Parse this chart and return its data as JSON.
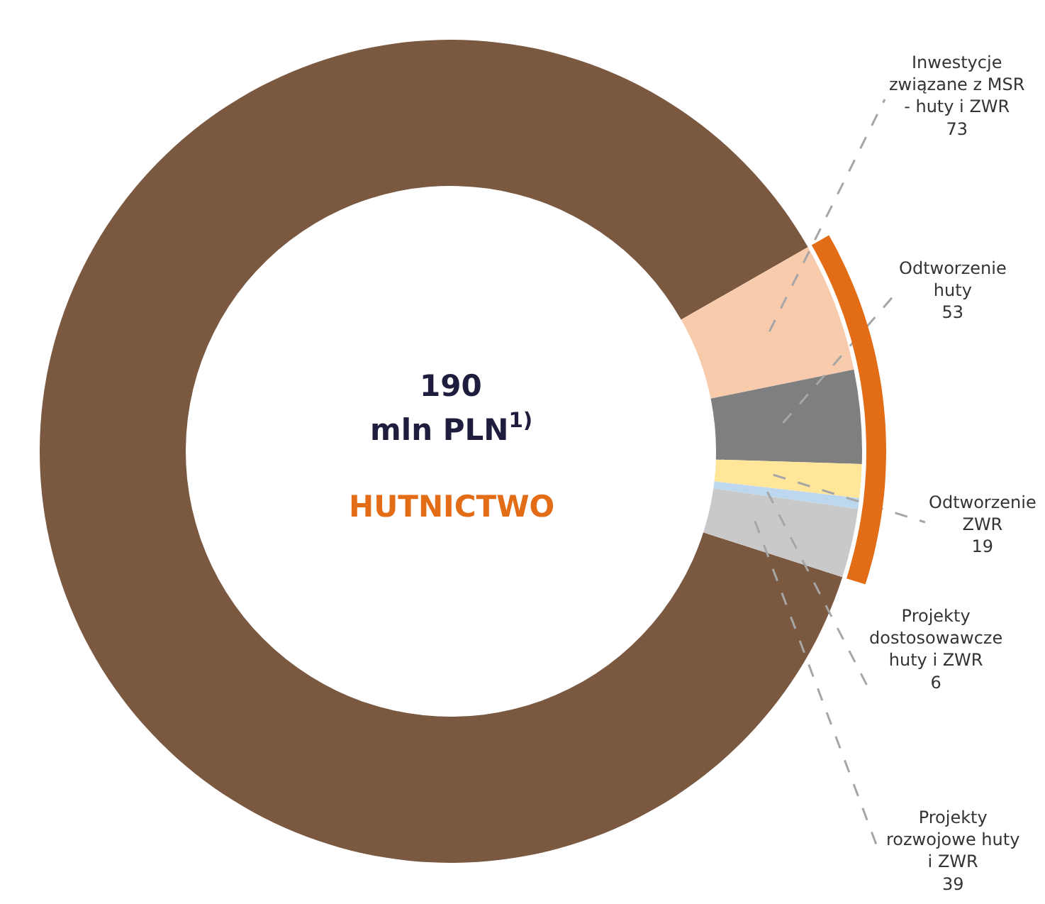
{
  "chart_data": {
    "type": "donut",
    "categories": [
      null,
      "Inwestycje związane z MSR - huty i ZWR",
      "Odtworzenie huty",
      "Odtworzenie ZWR",
      "Projekty dostosowawcze huty i ZWR",
      "Projekty rozwojowe huty i ZWR"
    ],
    "values": [
      1249,
      73,
      53,
      19,
      6,
      39
    ],
    "value_labels": [
      null,
      "73",
      "53",
      "19",
      "6",
      "39"
    ],
    "colors": [
      "#7b5840",
      "#f8cbad",
      "#7f7f7f",
      "#ffe699",
      "#bdd7ee",
      "#c9c9c9"
    ],
    "annotations": [
      "190",
      "mln PLN$^{1)}$",
      "HUTNICTWO"
    ]
  }
}
